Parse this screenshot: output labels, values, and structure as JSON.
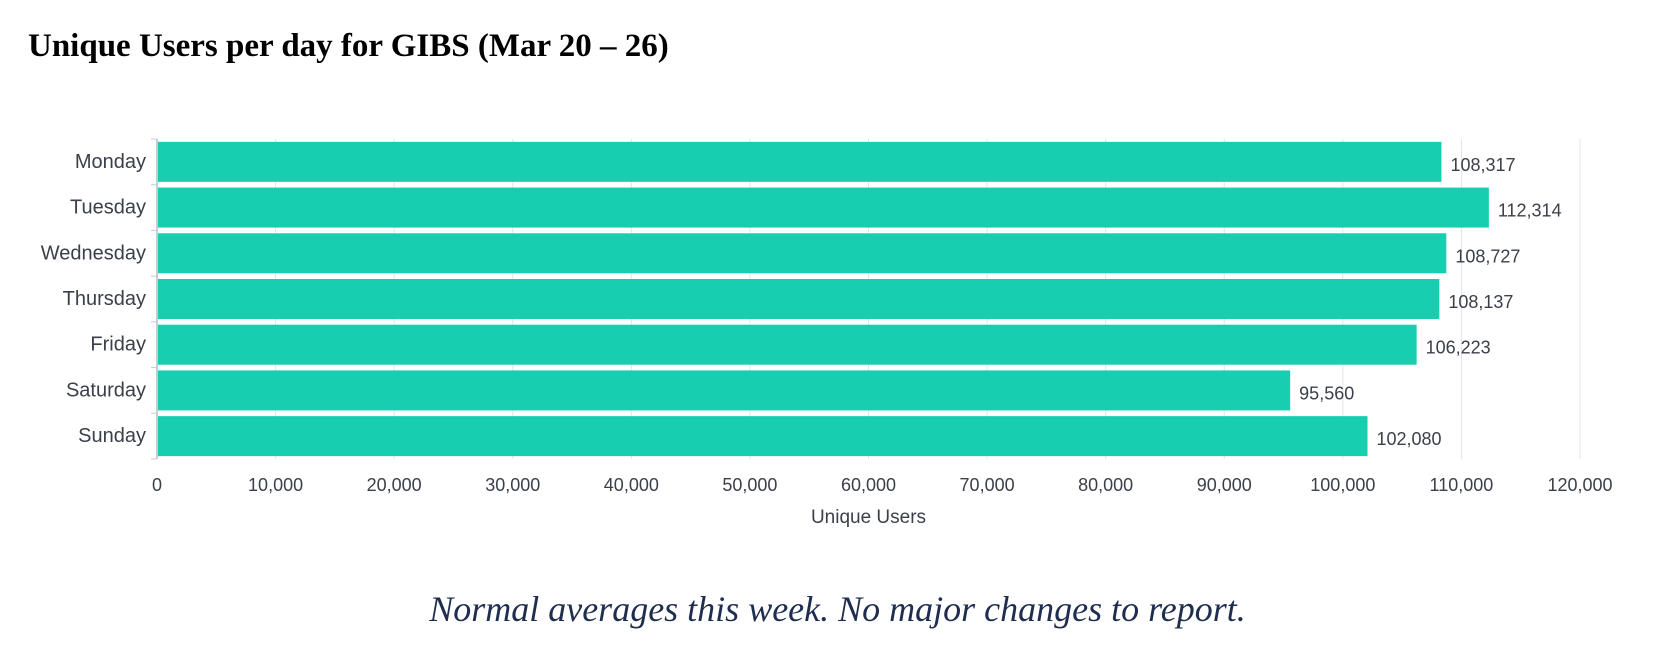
{
  "title": "Unique Users per day for GIBS (Mar 20 – 26)",
  "footnote": "Normal averages this week.  No major changes to report.",
  "colors": {
    "bar": "#17ceb0",
    "grid": "#e2e4e8",
    "axis_text": "#3b3f4a",
    "footnote": "#1f2d4e"
  },
  "chart_data": {
    "type": "bar",
    "orientation": "horizontal",
    "categories": [
      "Monday",
      "Tuesday",
      "Wednesday",
      "Thursday",
      "Friday",
      "Saturday",
      "Sunday"
    ],
    "values": [
      108317,
      112314,
      108727,
      108137,
      106223,
      95560,
      102080
    ],
    "data_labels": [
      "108,317",
      "112,314",
      "108,727",
      "108,137",
      "106,223",
      "95,560",
      "102,080"
    ],
    "xlabel": "Unique Users",
    "ylabel": "",
    "xlim": [
      0,
      120000
    ],
    "x_ticks": [
      0,
      10000,
      20000,
      30000,
      40000,
      50000,
      60000,
      70000,
      80000,
      90000,
      100000,
      110000,
      120000
    ],
    "x_tick_labels": [
      "0",
      "10,000",
      "20,000",
      "30,000",
      "40,000",
      "50,000",
      "60,000",
      "70,000",
      "80,000",
      "90,000",
      "100,000",
      "110,000",
      "120,000"
    ],
    "grid": true,
    "legend": "none"
  }
}
